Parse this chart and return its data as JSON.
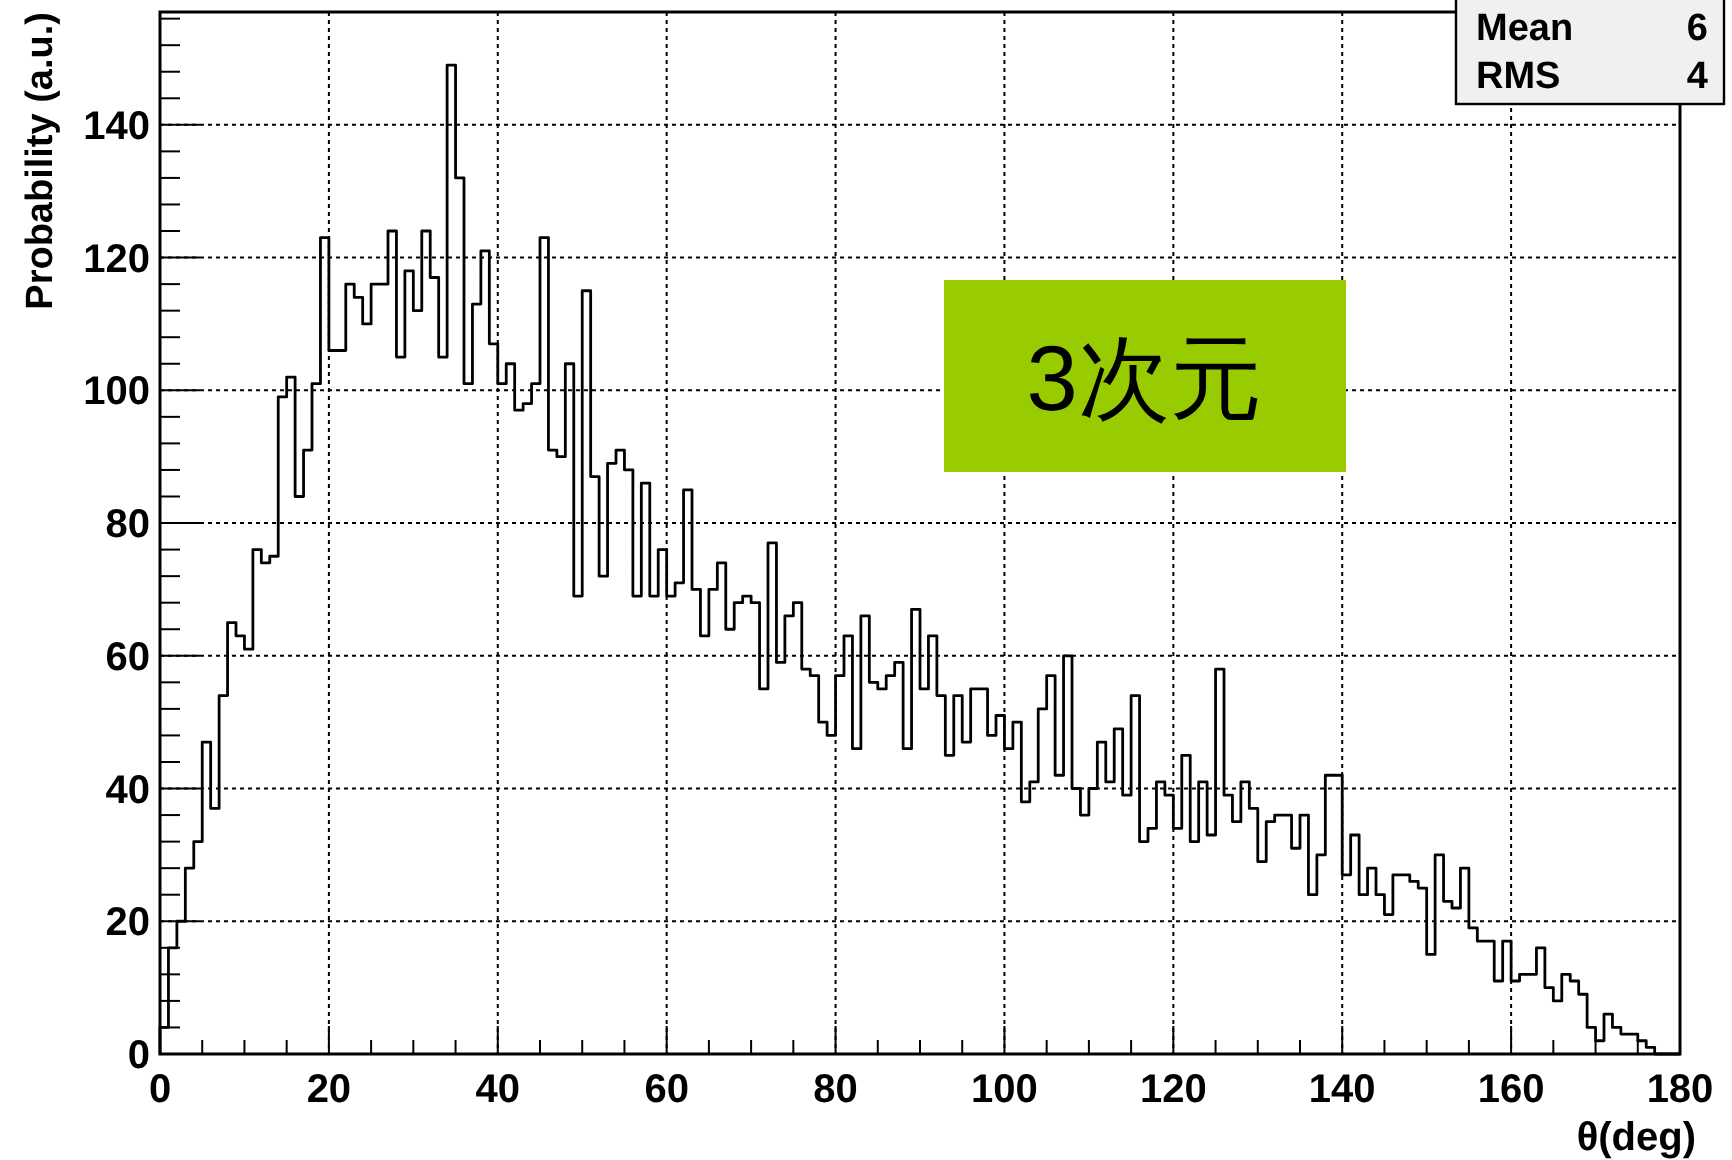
{
  "chart_data": {
    "type": "histogram",
    "xlabel": "θ(deg)",
    "ylabel": "Probability (a.u.)",
    "annotations": [
      "3次元",
      "Mean",
      "6",
      "RMS",
      "4"
    ],
    "bins": [
      0,
      1,
      2,
      3,
      4,
      5,
      6,
      7,
      8,
      9,
      10,
      11,
      12,
      13,
      14,
      15,
      16,
      17,
      18,
      19,
      20,
      21,
      22,
      23,
      24,
      25,
      26,
      27,
      28,
      29,
      30,
      31,
      32,
      33,
      34,
      35,
      36,
      37,
      38,
      39,
      40,
      41,
      42,
      43,
      44,
      45,
      46,
      47,
      48,
      49,
      50,
      51,
      52,
      53,
      54,
      55,
      56,
      57,
      58,
      59,
      60,
      61,
      62,
      63,
      64,
      65,
      66,
      67,
      68,
      69,
      70,
      71,
      72,
      73,
      74,
      75,
      76,
      77,
      78,
      79,
      80,
      81,
      82,
      83,
      84,
      85,
      86,
      87,
      88,
      89,
      90,
      91,
      92,
      93,
      94,
      95,
      96,
      97,
      98,
      99,
      100,
      101,
      102,
      103,
      104,
      105,
      106,
      107,
      108,
      109,
      110,
      111,
      112,
      113,
      114,
      115,
      116,
      117,
      118,
      119,
      120,
      121,
      122,
      123,
      124,
      125,
      126,
      127,
      128,
      129,
      130,
      131,
      132,
      133,
      134,
      135,
      136,
      137,
      138,
      139,
      140,
      141,
      142,
      143,
      144,
      145,
      146,
      147,
      148,
      149,
      150,
      151,
      152,
      153,
      154,
      155,
      156,
      157,
      158,
      159,
      160,
      161,
      162,
      163,
      164,
      165,
      166,
      167,
      168,
      169,
      170,
      171,
      172,
      173,
      174,
      175,
      176,
      177,
      178,
      179,
      180
    ],
    "values": [
      4,
      16,
      20,
      28,
      32,
      47,
      37,
      54,
      65,
      63,
      61,
      76,
      74,
      75,
      99,
      102,
      84,
      91,
      101,
      123,
      106,
      106,
      116,
      114,
      110,
      116,
      116,
      124,
      105,
      118,
      112,
      124,
      117,
      105,
      149,
      132,
      101,
      113,
      121,
      107,
      101,
      104,
      97,
      98,
      101,
      123,
      91,
      90,
      104,
      69,
      115,
      87,
      72,
      89,
      91,
      88,
      69,
      86,
      69,
      76,
      69,
      71,
      85,
      70,
      63,
      70,
      74,
      64,
      68,
      69,
      68,
      55,
      77,
      59,
      66,
      68,
      58,
      57,
      50,
      48,
      57,
      63,
      46,
      66,
      56,
      55,
      57,
      59,
      46,
      67,
      55,
      63,
      54,
      45,
      54,
      47,
      55,
      55,
      48,
      51,
      46,
      50,
      38,
      41,
      52,
      57,
      42,
      60,
      40,
      36,
      40,
      47,
      41,
      49,
      39,
      54,
      32,
      34,
      41,
      39,
      34,
      45,
      32,
      41,
      33,
      58,
      39,
      35,
      41,
      37,
      29,
      35,
      36,
      36,
      31,
      36,
      24,
      30,
      42,
      42,
      27,
      33,
      24,
      28,
      24,
      21,
      27,
      27,
      26,
      25,
      15,
      30,
      23,
      22,
      28,
      19,
      17,
      17,
      11,
      17,
      11,
      12,
      12,
      16,
      10,
      8,
      12,
      11,
      9,
      4,
      2,
      6,
      4,
      3,
      3,
      2,
      1,
      0,
      0,
      0
    ],
    "color": "#000000",
    "xlim": [
      0,
      180
    ],
    "xticks": [
      0,
      20,
      40,
      60,
      80,
      100,
      120,
      140,
      160,
      180
    ],
    "ylim": [
      0,
      157
    ],
    "yticks": [
      0,
      20,
      40,
      60,
      80,
      100,
      120,
      140
    ],
    "grid": true
  }
}
